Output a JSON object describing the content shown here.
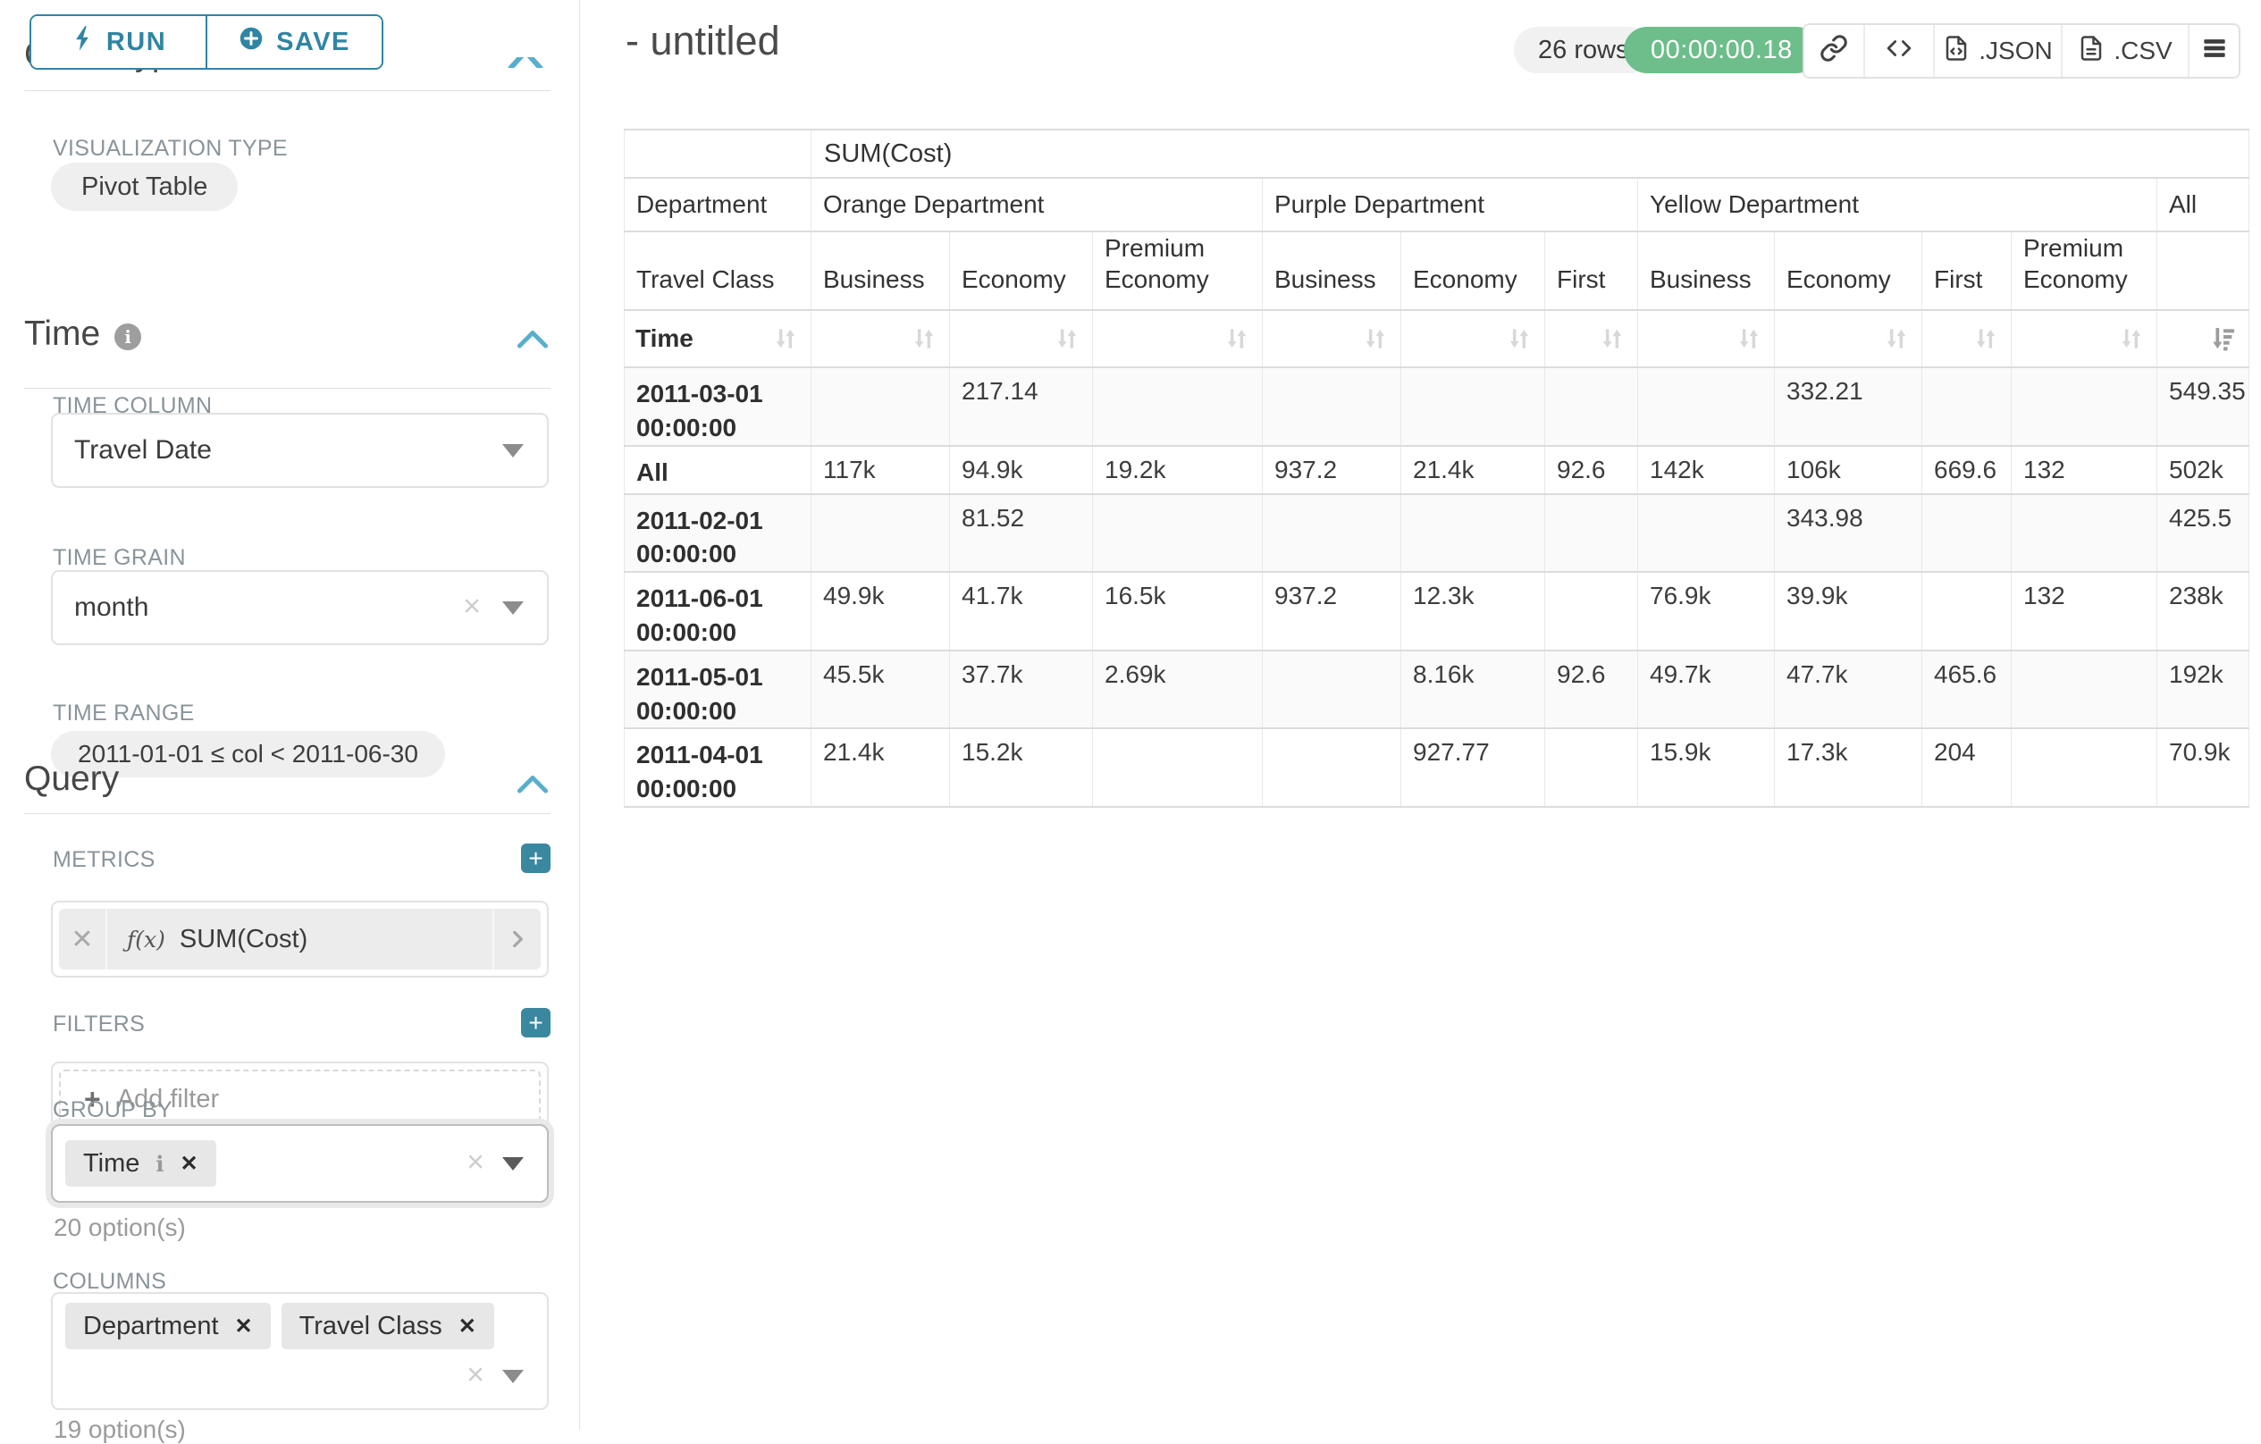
{
  "colors": {
    "accent_teal": "#2f85a3",
    "plus_teal": "#3a87a0",
    "timer_green": "#6dbe8a",
    "chip_gray": "#e7e7e7",
    "stripe_gray": "#fafafa"
  },
  "panel": {
    "run_label": "RUN",
    "save_label": "SAVE",
    "chart_type_heading": "Chart Type",
    "viz_type_label": "VISUALIZATION TYPE",
    "viz_type_value": "Pivot Table",
    "time_section": {
      "title": "Time",
      "time_column_label": "TIME COLUMN",
      "time_column_value": "Travel Date",
      "time_grain_label": "TIME GRAIN",
      "time_grain_value": "month",
      "time_range_label": "TIME RANGE",
      "time_range_value": "2011-01-01 ≤ col < 2011-06-30"
    },
    "query_section": {
      "title": "Query",
      "metrics_label": "METRICS",
      "metric_fx": "ƒ(x)",
      "metric_chip": "SUM(Cost)",
      "filters_label": "FILTERS",
      "add_filter_label": "Add filter",
      "group_by_label": "GROUP BY",
      "group_by_chips": [
        {
          "label": "Time",
          "info": true
        }
      ],
      "group_by_options": "20 option(s)",
      "columns_label": "COLUMNS",
      "columns_chips": [
        {
          "label": "Department",
          "info": false
        },
        {
          "label": "Travel Class",
          "info": false
        }
      ],
      "columns_options": "19 option(s)"
    }
  },
  "header": {
    "title": "- untitled",
    "row_count": "26 rows",
    "timer": "00:00:00.18",
    "json_label": ".JSON",
    "csv_label": ".CSV"
  },
  "table": {
    "metric_header": "SUM(Cost)",
    "row_dim_headers": [
      "Department",
      "Travel Class",
      "Time"
    ],
    "col_groups": [
      {
        "label": "Orange Department",
        "cols": [
          "Business",
          "Economy",
          "Premium Economy"
        ]
      },
      {
        "label": "Purple Department",
        "cols": [
          "Business",
          "Economy",
          "First"
        ]
      },
      {
        "label": "Yellow Department",
        "cols": [
          "Business",
          "Economy",
          "First",
          "Premium Economy"
        ]
      },
      {
        "label": "All",
        "cols": [
          ""
        ]
      }
    ],
    "sort": {
      "active_column_index": 10,
      "active_direction": "desc"
    },
    "rows": [
      {
        "label": "2011-03-01 00:00:00",
        "values": [
          "",
          "217.14",
          "",
          "",
          "",
          "",
          "",
          "332.21",
          "",
          "",
          "549.35"
        ]
      },
      {
        "label": "All",
        "values": [
          "117k",
          "94.9k",
          "19.2k",
          "937.2",
          "21.4k",
          "92.6",
          "142k",
          "106k",
          "669.6",
          "132",
          "502k"
        ]
      },
      {
        "label": "2011-02-01 00:00:00",
        "values": [
          "",
          "81.52",
          "",
          "",
          "",
          "",
          "",
          "343.98",
          "",
          "",
          "425.5"
        ]
      },
      {
        "label": "2011-06-01 00:00:00",
        "values": [
          "49.9k",
          "41.7k",
          "16.5k",
          "937.2",
          "12.3k",
          "",
          "76.9k",
          "39.9k",
          "",
          "132",
          "238k"
        ]
      },
      {
        "label": "2011-05-01 00:00:00",
        "values": [
          "45.5k",
          "37.7k",
          "2.69k",
          "",
          "8.16k",
          "92.6",
          "49.7k",
          "47.7k",
          "465.6",
          "",
          "192k"
        ]
      },
      {
        "label": "2011-04-01 00:00:00",
        "values": [
          "21.4k",
          "15.2k",
          "",
          "",
          "927.77",
          "",
          "15.9k",
          "17.3k",
          "204",
          "",
          "70.9k"
        ]
      }
    ]
  }
}
